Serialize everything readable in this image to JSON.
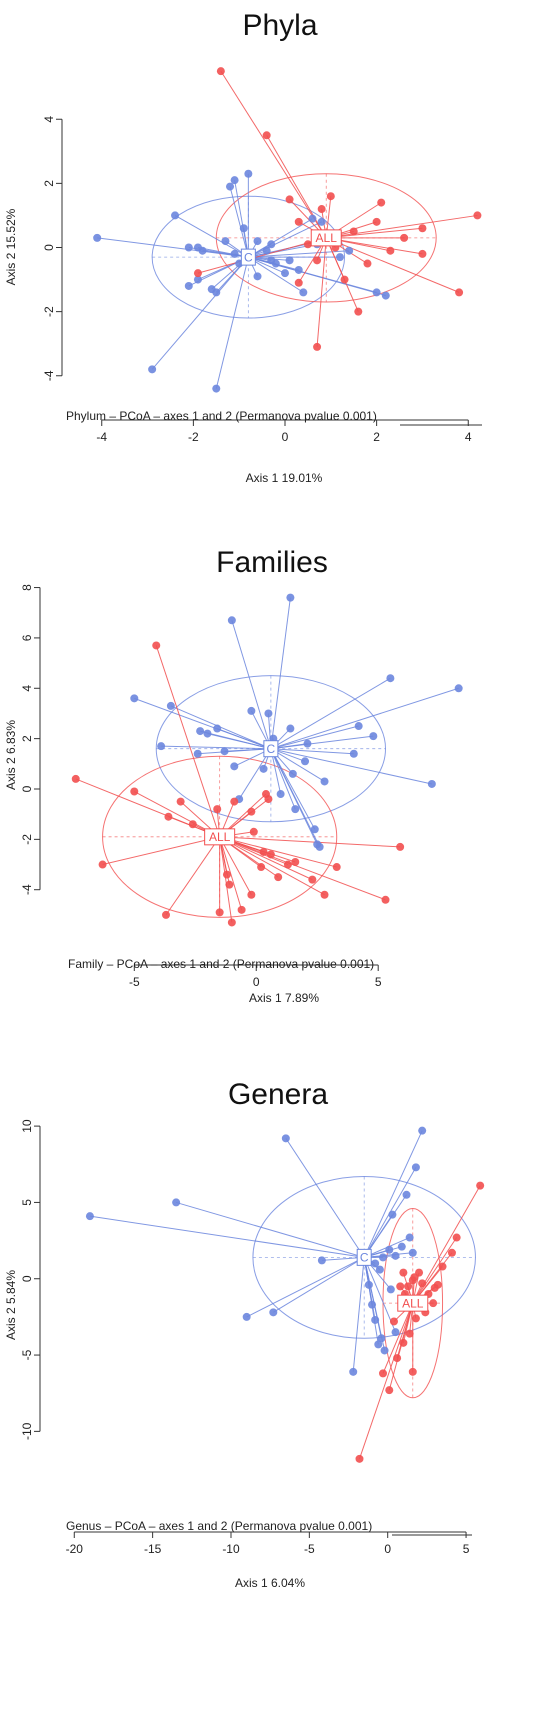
{
  "chart_data": [
    {
      "type": "scatter",
      "title": "Phyla",
      "subtitle": "Phylum – PCoA – axes 1 and 2 (Permanova pvalue 0.001)",
      "xlabel": "Axis 1 19.01%",
      "ylabel": "Axis 2 15.52%",
      "xlim": [
        -4.3,
        4.3
      ],
      "ylim": [
        -4.6,
        4.6
      ],
      "xticks": [
        -4,
        -2,
        0,
        2,
        4
      ],
      "yticks": [
        -4,
        -2,
        0,
        2,
        4
      ],
      "colors": {
        "C": "#6b86de",
        "ALL": "#f24f4f"
      },
      "groups": [
        {
          "label": "C",
          "center": [
            -0.8,
            -0.3
          ],
          "ellipse": {
            "rx": 2.1,
            "ry": 1.9
          },
          "points": [
            [
              -4.1,
              0.3
            ],
            [
              -2.9,
              -3.8
            ],
            [
              -1.5,
              -4.4
            ],
            [
              -2.4,
              1.0
            ],
            [
              -2.1,
              0.0
            ],
            [
              -1.9,
              0.0
            ],
            [
              -1.8,
              -0.1
            ],
            [
              -2.1,
              -1.2
            ],
            [
              -1.6,
              -1.3
            ],
            [
              -1.9,
              -1.0
            ],
            [
              -1.1,
              2.1
            ],
            [
              -1.2,
              1.9
            ],
            [
              -1.5,
              -1.4
            ],
            [
              -1.3,
              0.2
            ],
            [
              -1.1,
              -0.2
            ],
            [
              -1.0,
              -0.5
            ],
            [
              -0.9,
              0.6
            ],
            [
              -0.6,
              0.2
            ],
            [
              -0.4,
              -0.1
            ],
            [
              -0.3,
              -0.4
            ],
            [
              -0.2,
              -0.5
            ],
            [
              -0.6,
              -0.9
            ],
            [
              -0.8,
              2.3
            ],
            [
              0.0,
              -0.8
            ],
            [
              0.4,
              -1.4
            ],
            [
              0.3,
              -0.7
            ],
            [
              0.7,
              0.1
            ],
            [
              1.1,
              0.3
            ],
            [
              1.2,
              -0.3
            ],
            [
              1.4,
              -0.1
            ],
            [
              0.6,
              0.9
            ],
            [
              0.8,
              0.8
            ],
            [
              2.0,
              -1.4
            ],
            [
              2.2,
              -1.5
            ],
            [
              -0.3,
              0.1
            ],
            [
              0.1,
              -0.4
            ]
          ]
        },
        {
          "label": "ALL",
          "center": [
            0.9,
            0.3
          ],
          "ellipse": {
            "rx": 2.4,
            "ry": 2.0
          },
          "points": [
            [
              -1.4,
              5.5
            ],
            [
              -0.4,
              3.5
            ],
            [
              0.7,
              -3.1
            ],
            [
              1.6,
              -2.0
            ],
            [
              3.8,
              -1.4
            ],
            [
              4.2,
              1.0
            ],
            [
              3.0,
              0.6
            ],
            [
              2.0,
              0.8
            ],
            [
              2.1,
              1.4
            ],
            [
              3.0,
              -0.2
            ],
            [
              2.3,
              -0.1
            ],
            [
              2.6,
              0.3
            ],
            [
              1.8,
              -0.5
            ],
            [
              1.3,
              -1.0
            ],
            [
              1.0,
              1.6
            ],
            [
              0.8,
              1.2
            ],
            [
              0.1,
              1.5
            ],
            [
              0.3,
              0.8
            ],
            [
              0.5,
              0.1
            ],
            [
              0.3,
              -1.1
            ],
            [
              0.7,
              -0.4
            ],
            [
              -1.9,
              -0.8
            ],
            [
              1.5,
              0.5
            ],
            [
              1.1,
              0.0
            ]
          ]
        }
      ],
      "group_labels": {
        "C": "C",
        "ALL": "ALL"
      }
    },
    {
      "type": "scatter",
      "title": "Families",
      "subtitle": "Family – PCoA – axes 1 and 2 (Permanova pvalue 0.001)",
      "xlabel": "Axis 1 7.89%",
      "ylabel": "Axis 2 6.83%",
      "xlim": [
        -7.8,
        8.6
      ],
      "ylim": [
        -5.6,
        8.3
      ],
      "xticks": [
        -5,
        0,
        5
      ],
      "yticks": [
        -4,
        -2,
        0,
        2,
        4,
        6,
        8
      ],
      "colors": {
        "C": "#6b86de",
        "ALL": "#f24f4f"
      },
      "groups": [
        {
          "label": "C",
          "center": [
            0.6,
            1.6
          ],
          "ellipse": {
            "rx": 4.7,
            "ry": 2.9
          },
          "points": [
            [
              1.4,
              7.6
            ],
            [
              -1.0,
              6.7
            ],
            [
              -5.0,
              3.6
            ],
            [
              -3.5,
              3.3
            ],
            [
              -2.3,
              2.3
            ],
            [
              -2.0,
              2.2
            ],
            [
              -1.6,
              2.4
            ],
            [
              -2.4,
              1.4
            ],
            [
              -1.3,
              1.5
            ],
            [
              -0.9,
              0.9
            ],
            [
              -0.2,
              3.1
            ],
            [
              0.5,
              3.0
            ],
            [
              0.7,
              2.0
            ],
            [
              1.4,
              2.4
            ],
            [
              2.1,
              1.8
            ],
            [
              2.0,
              1.1
            ],
            [
              1.5,
              0.6
            ],
            [
              1.0,
              -0.2
            ],
            [
              1.6,
              -0.8
            ],
            [
              2.4,
              -1.6
            ],
            [
              2.5,
              -2.2
            ],
            [
              2.6,
              -2.3
            ],
            [
              4.0,
              1.4
            ],
            [
              4.2,
              2.5
            ],
            [
              4.8,
              2.1
            ],
            [
              5.5,
              4.4
            ],
            [
              7.2,
              0.2
            ],
            [
              8.3,
              4.0
            ],
            [
              -3.9,
              1.7
            ],
            [
              -0.7,
              -0.4
            ],
            [
              0.3,
              0.8
            ],
            [
              2.8,
              0.3
            ]
          ]
        },
        {
          "label": "ALL",
          "center": [
            -1.5,
            -1.9
          ],
          "ellipse": {
            "rx": 4.8,
            "ry": 3.2
          },
          "points": [
            [
              -4.1,
              5.7
            ],
            [
              -7.4,
              0.4
            ],
            [
              -6.3,
              -3.0
            ],
            [
              -5.0,
              -0.1
            ],
            [
              -3.6,
              -1.1
            ],
            [
              -3.1,
              -0.5
            ],
            [
              -2.6,
              -1.4
            ],
            [
              -1.6,
              -0.8
            ],
            [
              -0.9,
              -0.5
            ],
            [
              -0.2,
              -0.9
            ],
            [
              0.4,
              -0.2
            ],
            [
              0.5,
              -0.4
            ],
            [
              -0.1,
              -1.7
            ],
            [
              0.3,
              -2.5
            ],
            [
              0.6,
              -2.6
            ],
            [
              1.3,
              -3.0
            ],
            [
              0.9,
              -3.5
            ],
            [
              -1.2,
              -3.4
            ],
            [
              -1.1,
              -3.8
            ],
            [
              -1.5,
              -4.9
            ],
            [
              -1.0,
              -5.3
            ],
            [
              -0.6,
              -4.8
            ],
            [
              -3.7,
              -5.0
            ],
            [
              -0.2,
              -4.2
            ],
            [
              0.2,
              -3.1
            ],
            [
              2.3,
              -3.6
            ],
            [
              2.8,
              -4.2
            ],
            [
              3.3,
              -3.1
            ],
            [
              5.3,
              -4.4
            ],
            [
              5.9,
              -2.3
            ],
            [
              1.6,
              -2.9
            ]
          ]
        }
      ],
      "group_labels": {
        "C": "C",
        "ALL": "ALL"
      }
    },
    {
      "type": "scatter",
      "title": "Genera",
      "subtitle": "Genus – PCoA – axes 1 and 2 (Permanova pvalue 0.001)",
      "xlabel": "Axis 1 6.04%",
      "ylabel": "Axis 2 5.84%",
      "xlim": [
        -20.4,
        6.4
      ],
      "ylim": [
        -12.4,
        10.4
      ],
      "xticks": [
        -20,
        -15,
        -10,
        -5,
        0,
        5
      ],
      "yticks": [
        -10,
        -5,
        0,
        5,
        10
      ],
      "colors": {
        "C": "#6b86de",
        "ALL": "#f24f4f"
      },
      "groups": [
        {
          "label": "C",
          "center": [
            -1.5,
            1.4
          ],
          "ellipse": {
            "rx": 7.1,
            "ry": 5.3
          },
          "points": [
            [
              -19.0,
              4.1
            ],
            [
              -13.5,
              5.0
            ],
            [
              -6.5,
              9.2
            ],
            [
              -9.0,
              -2.5
            ],
            [
              -7.3,
              -2.2
            ],
            [
              -4.2,
              1.2
            ],
            [
              2.2,
              9.7
            ],
            [
              1.8,
              7.3
            ],
            [
              1.2,
              5.5
            ],
            [
              0.3,
              4.2
            ],
            [
              0.9,
              2.1
            ],
            [
              0.5,
              1.5
            ],
            [
              0.1,
              1.9
            ],
            [
              -0.5,
              0.6
            ],
            [
              -1.2,
              -0.4
            ],
            [
              -1.0,
              -1.7
            ],
            [
              -0.8,
              -2.7
            ],
            [
              -0.4,
              -3.9
            ],
            [
              -0.6,
              -4.3
            ],
            [
              -0.2,
              -4.7
            ],
            [
              0.5,
              -3.5
            ],
            [
              -2.2,
              -6.1
            ],
            [
              -0.8,
              1.0
            ],
            [
              -0.3,
              1.4
            ],
            [
              0.2,
              -0.7
            ],
            [
              1.4,
              2.7
            ],
            [
              1.6,
              1.7
            ]
          ]
        },
        {
          "label": "ALL",
          "center": [
            1.6,
            -1.6
          ],
          "ellipse": {
            "rx": 1.9,
            "ry": 6.2
          },
          "points": [
            [
              5.9,
              6.1
            ],
            [
              4.4,
              2.7
            ],
            [
              4.1,
              1.7
            ],
            [
              3.5,
              0.8
            ],
            [
              3.0,
              -0.6
            ],
            [
              2.6,
              -1.0
            ],
            [
              2.2,
              -0.3
            ],
            [
              2.0,
              0.4
            ],
            [
              1.6,
              -0.1
            ],
            [
              1.3,
              -0.5
            ],
            [
              1.1,
              -1.0
            ],
            [
              0.8,
              -0.5
            ],
            [
              1.0,
              0.4
            ],
            [
              2.4,
              -2.2
            ],
            [
              1.8,
              -2.6
            ],
            [
              1.4,
              -3.6
            ],
            [
              1.0,
              -4.2
            ],
            [
              0.6,
              -5.2
            ],
            [
              1.6,
              -6.1
            ],
            [
              -0.3,
              -6.2
            ],
            [
              0.1,
              -7.3
            ],
            [
              -1.8,
              -11.8
            ],
            [
              2.9,
              -1.6
            ],
            [
              3.2,
              -0.4
            ],
            [
              0.4,
              -2.8
            ],
            [
              1.7,
              0.1
            ]
          ]
        }
      ],
      "group_labels": {
        "C": "C",
        "ALL": "ALL"
      }
    }
  ]
}
